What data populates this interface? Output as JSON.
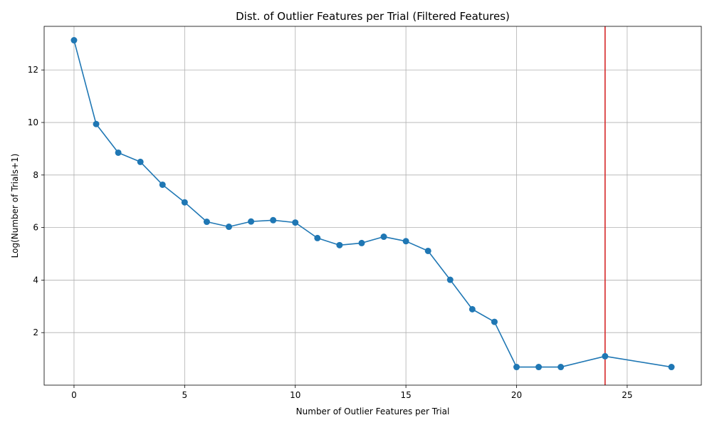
{
  "chart_data": {
    "type": "line",
    "title": "Dist. of Outlier Features per Trial (Filtered Features)",
    "xlabel": "Number of Outlier Features per Trial",
    "ylabel": "Log(Number of Trials+1)",
    "xlim": [
      -1.35,
      28.35
    ],
    "ylim": [
      0.0,
      13.66
    ],
    "xticks": [
      0,
      5,
      10,
      15,
      20,
      25
    ],
    "yticks": [
      2,
      4,
      6,
      8,
      10,
      12
    ],
    "grid": true,
    "series": [
      {
        "x": [
          0,
          1,
          2,
          3,
          4,
          5,
          6,
          7,
          8,
          9,
          10,
          11,
          12,
          13,
          14,
          15,
          16,
          17,
          18,
          19,
          20,
          21,
          22,
          24,
          27
        ],
        "y": [
          13.13,
          9.94,
          8.85,
          8.5,
          7.63,
          6.96,
          6.22,
          6.03,
          6.23,
          6.28,
          6.19,
          5.6,
          5.33,
          5.41,
          5.65,
          5.48,
          5.11,
          4.01,
          2.89,
          2.41,
          0.69,
          0.69,
          0.69,
          1.1,
          0.69
        ],
        "color": "#1f77b4",
        "marker": "circle"
      }
    ],
    "vline": {
      "x": 24,
      "color": "#d62728"
    }
  }
}
